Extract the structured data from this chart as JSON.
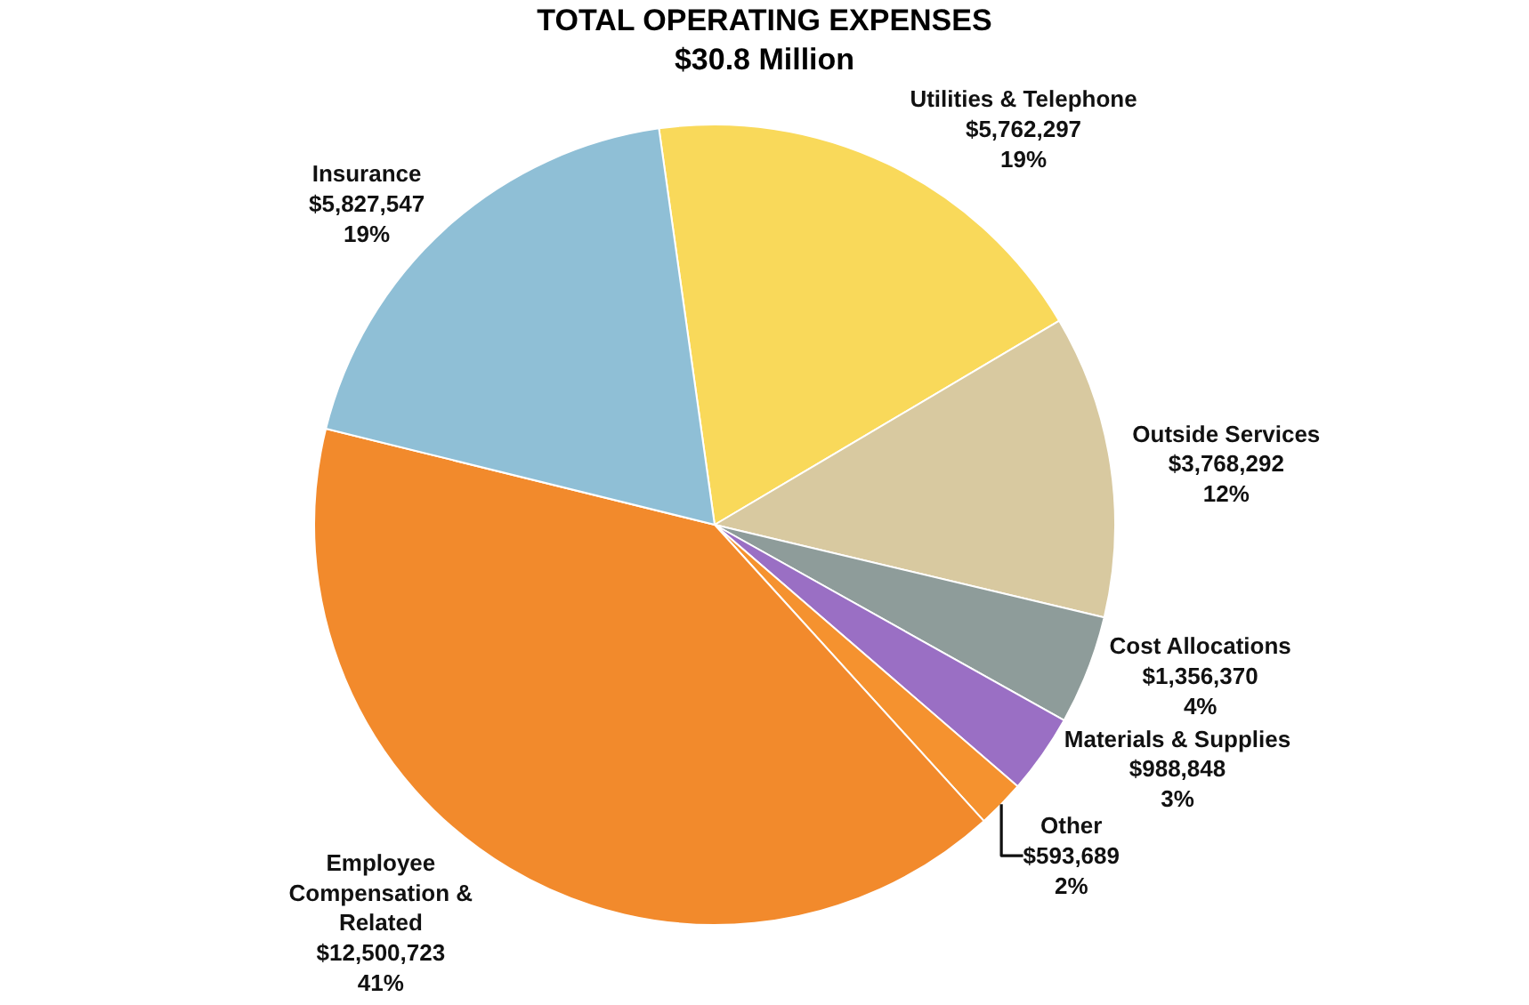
{
  "chart_data": {
    "type": "pie",
    "title": "TOTAL OPERATING EXPENSES",
    "subtitle": "$30.8 Million",
    "categories": [
      "Utilities & Telephone",
      "Outside Services",
      "Cost Allocations",
      "Materials & Supplies",
      "Other",
      "Employee\nCompensation &\nRelated",
      "Insurance"
    ],
    "values": [
      5762297,
      3768292,
      1356370,
      988848,
      593689,
      12500723,
      5827547
    ],
    "value_labels": [
      "$5,762,297\n19%",
      "$3,768,292\n12%",
      "$1,356,370\n4%",
      "$988,848\n3%",
      "$593,689\n2%",
      "$12,500,723\n41%",
      "$5,827,547\n19%"
    ],
    "colors": [
      "#f9d95a",
      "#d8c9a0",
      "#8e9c9a",
      "#9a6fc4",
      "#f5922f",
      "#f28a2c",
      "#8fbfd6"
    ],
    "legend": false
  }
}
